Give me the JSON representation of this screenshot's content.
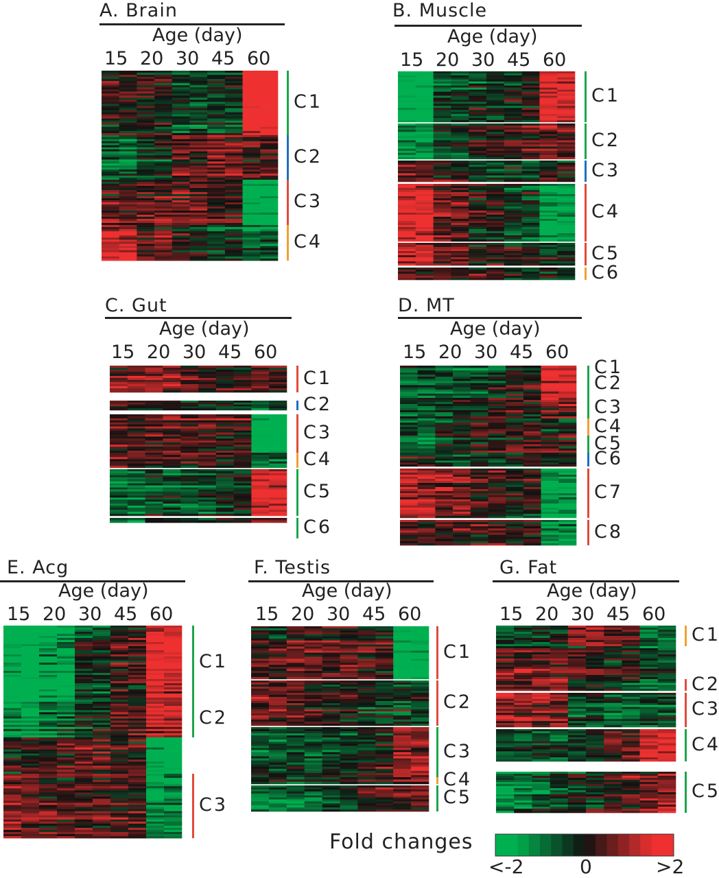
{
  "chart_data": [
    {
      "id": "A",
      "type": "heatmap",
      "title": "A. Brain",
      "xlabel": "Age (day)",
      "x": [
        "15",
        "20",
        "30",
        "45",
        "60"
      ],
      "clusters": [
        {
          "label": "C1",
          "color": "#1aa64a",
          "profile": [
            0,
            0,
            -0.5,
            -0.3,
            2
          ]
        },
        {
          "label": "C2",
          "color": "#1b6fc0",
          "profile": [
            -0.8,
            -0.3,
            0.5,
            0.6,
            0.5
          ]
        },
        {
          "label": "C3",
          "color": "#e04a3a",
          "profile": [
            0.3,
            0.4,
            0.5,
            0.3,
            -2
          ]
        },
        {
          "label": "C4",
          "color": "#f0a030",
          "profile": [
            1.2,
            0.5,
            0,
            -0.5,
            -0.8
          ]
        }
      ]
    },
    {
      "id": "B",
      "type": "heatmap",
      "title": "B. Muscle",
      "xlabel": "Age (day)",
      "x": [
        "15",
        "20",
        "30",
        "45",
        "60"
      ],
      "clusters": [
        {
          "label": "C1",
          "color": "#1aa64a",
          "profile": [
            -2,
            -0.5,
            -0.3,
            0,
            1.5
          ]
        },
        {
          "label": "C2",
          "color": "#1aa64a",
          "profile": [
            -1.5,
            -0.5,
            0,
            0.3,
            0.5
          ]
        },
        {
          "label": "C3",
          "color": "#1b6fc0",
          "profile": [
            0.5,
            0.3,
            -0.5,
            -0.3,
            0
          ]
        },
        {
          "label": "C4",
          "color": "#e04a3a",
          "profile": [
            1.5,
            0.5,
            0,
            -0.5,
            -1.5
          ]
        },
        {
          "label": "C5",
          "color": "#e04a3a",
          "profile": [
            1,
            0.5,
            0,
            0,
            -0.5
          ]
        },
        {
          "label": "C6",
          "color": "#f0a030",
          "profile": [
            0.5,
            0.5,
            0.3,
            0,
            0
          ]
        }
      ]
    },
    {
      "id": "C",
      "type": "heatmap",
      "title": "C. Gut",
      "xlabel": "Age (day)",
      "x": [
        "15",
        "20",
        "30",
        "45",
        "60"
      ],
      "clusters": [
        {
          "label": "C1",
          "color": "#e04a3a",
          "profile": [
            0.8,
            0.8,
            0.3,
            0.2,
            0.3
          ]
        },
        {
          "label": "C2",
          "color": "#1b6fc0",
          "profile": [
            0.5,
            0.3,
            0,
            0,
            -0.5
          ]
        },
        {
          "label": "C3",
          "color": "#e04a3a",
          "profile": [
            0.5,
            0.5,
            0.5,
            0.3,
            -2
          ]
        },
        {
          "label": "C4",
          "color": "#f0a030",
          "profile": [
            0.3,
            0,
            0.3,
            0,
            -1
          ]
        },
        {
          "label": "C5",
          "color": "#1aa64a",
          "profile": [
            -0.8,
            -0.5,
            -0.5,
            -0.3,
            1.5
          ]
        },
        {
          "label": "C6",
          "color": "#1aa64a",
          "profile": [
            -1,
            -0.3,
            -0.3,
            0,
            0.5
          ]
        }
      ]
    },
    {
      "id": "D",
      "type": "heatmap",
      "title": "D. MT",
      "xlabel": "Age (day)",
      "x": [
        "15",
        "20",
        "30",
        "45",
        "60"
      ],
      "clusters": [
        {
          "label": "C1",
          "color": "#1aa64a",
          "profile": [
            -0.5,
            -0.5,
            -0.3,
            0,
            1.5
          ]
        },
        {
          "label": "C2",
          "color": "#1aa64a",
          "profile": [
            -0.8,
            -0.5,
            -0.3,
            0,
            1.5
          ]
        },
        {
          "label": "C3",
          "color": "#1aa64a",
          "profile": [
            -0.5,
            -0.3,
            0,
            0.3,
            0.8
          ]
        },
        {
          "label": "C4",
          "color": "#f0a030",
          "profile": [
            -0.5,
            0,
            0.3,
            0.3,
            0
          ]
        },
        {
          "label": "C5",
          "color": "#1aa64a",
          "profile": [
            -1,
            -0.5,
            0,
            0.3,
            0.3
          ]
        },
        {
          "label": "C6",
          "color": "#1b6fc0",
          "profile": [
            0,
            -0.3,
            -0.5,
            0,
            0
          ]
        },
        {
          "label": "C7",
          "color": "#e04a3a",
          "profile": [
            1,
            0.8,
            0.3,
            0,
            -1.5
          ]
        },
        {
          "label": "C8",
          "color": "#e04a3a",
          "profile": [
            0.5,
            0.5,
            0.5,
            0.3,
            -1
          ]
        }
      ]
    },
    {
      "id": "E",
      "type": "heatmap",
      "title": "E. Acg",
      "xlabel": "Age (day)",
      "x": [
        "15",
        "20",
        "30",
        "45",
        "60"
      ],
      "clusters": [
        {
          "label": "C1",
          "color": "#1aa64a",
          "profile": [
            -2,
            -1.5,
            -0.3,
            0.3,
            1.5
          ]
        },
        {
          "label": "C2",
          "color": "#1aa64a",
          "profile": [
            -1.5,
            -1,
            -0.3,
            0.3,
            1.2
          ]
        },
        {
          "label": "",
          "color": "",
          "profile": [
            0,
            0.3,
            0.5,
            0.3,
            -2
          ]
        },
        {
          "label": "C3",
          "color": "#e04a3a",
          "profile": [
            0.8,
            0.5,
            0.5,
            0.3,
            -1.2
          ]
        }
      ]
    },
    {
      "id": "F",
      "type": "heatmap",
      "title": "F. Testis",
      "xlabel": "Age (day)",
      "x": [
        "15",
        "20",
        "30",
        "45",
        "60"
      ],
      "clusters": [
        {
          "label": "C1",
          "color": "#e04a3a",
          "profile": [
            0.3,
            0.5,
            0.5,
            0.3,
            -2
          ]
        },
        {
          "label": "C2",
          "color": "#e04a3a",
          "profile": [
            0.5,
            0.3,
            0,
            -0.3,
            -0.5
          ]
        },
        {
          "label": "C3",
          "color": "#1aa64a",
          "profile": [
            -0.5,
            -0.5,
            -0.3,
            0,
            1
          ]
        },
        {
          "label": "C4",
          "color": "#f0a030",
          "profile": [
            -0.3,
            -0.3,
            0,
            0,
            0.5
          ]
        },
        {
          "label": "C5",
          "color": "#1aa64a",
          "profile": [
            -1,
            -0.8,
            -0.3,
            0.3,
            0.5
          ]
        }
      ]
    },
    {
      "id": "G",
      "type": "heatmap",
      "title": "G. Fat",
      "xlabel": "Age (day)",
      "x": [
        "15",
        "20",
        "30",
        "45",
        "60"
      ],
      "clusters": [
        {
          "label": "C1",
          "color": "#f0a030",
          "profile": [
            -0.5,
            -0.3,
            0.8,
            0.5,
            -1
          ]
        },
        {
          "label": "",
          "color": "",
          "profile": [
            0.5,
            0.5,
            0.3,
            0,
            -0.5
          ]
        },
        {
          "label": "C2",
          "color": "#e04a3a",
          "profile": [
            0.5,
            0.8,
            -0.3,
            -0.5,
            -0.8
          ]
        },
        {
          "label": "C3",
          "color": "#e04a3a",
          "profile": [
            1,
            0.8,
            -0.5,
            -0.8,
            -0.5
          ]
        },
        {
          "label": "C4",
          "color": "#1aa64a",
          "profile": [
            -0.5,
            -0.5,
            -0.3,
            0.5,
            1.5
          ]
        },
        {
          "label": "C5",
          "color": "#1aa64a",
          "profile": [
            -1,
            -0.5,
            0,
            0.3,
            0.8
          ]
        }
      ]
    }
  ],
  "legend": {
    "title": "Fold changes",
    "min_label": "<-2",
    "mid_label": "0",
    "max_label": ">2",
    "range": [
      -2,
      2
    ],
    "low_color": "#00b050",
    "mid_color": "#222222",
    "high_color": "#ee3030"
  }
}
